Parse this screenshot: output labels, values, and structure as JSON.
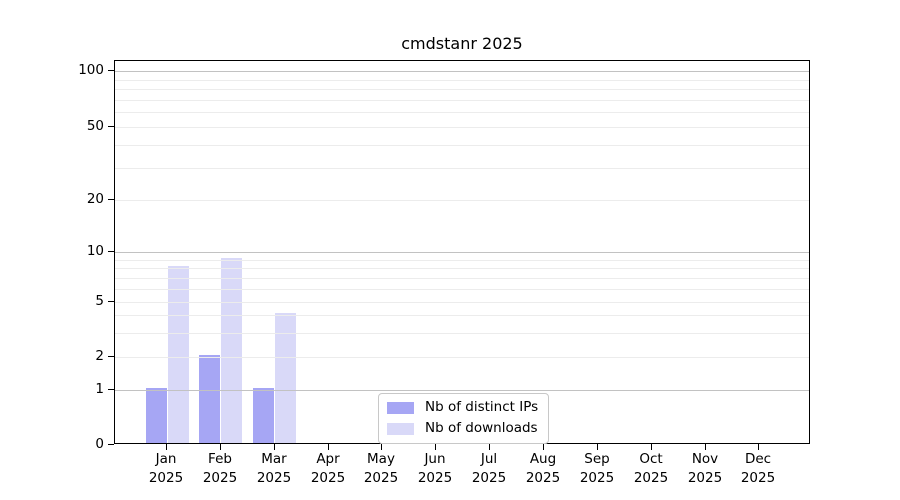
{
  "chart_data": {
    "type": "bar",
    "title": "cmdstanr 2025",
    "categories": [
      "Jan",
      "Feb",
      "Mar",
      "Apr",
      "May",
      "Jun",
      "Jul",
      "Aug",
      "Sep",
      "Oct",
      "Nov",
      "Dec"
    ],
    "year_label": "2025",
    "series": [
      {
        "name": "Nb of distinct IPs",
        "color": "#a6a6f4",
        "values": [
          1,
          2,
          1,
          0,
          0,
          0,
          0,
          0,
          0,
          0,
          0,
          0
        ]
      },
      {
        "name": "Nb of downloads",
        "color": "#d9d9f8",
        "values": [
          8,
          9,
          4,
          0,
          0,
          0,
          0,
          0,
          0,
          0,
          0,
          0
        ]
      }
    ],
    "y_axis": {
      "scale": "symlog-like",
      "tick_values": [
        0,
        1,
        2,
        5,
        10,
        20,
        50,
        100
      ],
      "major_grid_values": [
        1,
        10,
        100
      ],
      "minor_grid_values": [
        2,
        3,
        4,
        5,
        6,
        7,
        8,
        9,
        20,
        30,
        40,
        50,
        60,
        70,
        80,
        90
      ],
      "ylim": [
        0,
        110
      ]
    },
    "x_axis": {
      "label_lines": 2
    },
    "legend": {
      "position": "bottom-center",
      "entries": [
        "Nb of distinct IPs",
        "Nb of downloads"
      ]
    },
    "grid": "on",
    "colors": {
      "background": "#ffffff",
      "spine": "#000000",
      "major_grid": "#c2c2c2",
      "minor_grid": "#ececec",
      "text": "#000000",
      "legend_border": "#c8c8c8"
    }
  }
}
